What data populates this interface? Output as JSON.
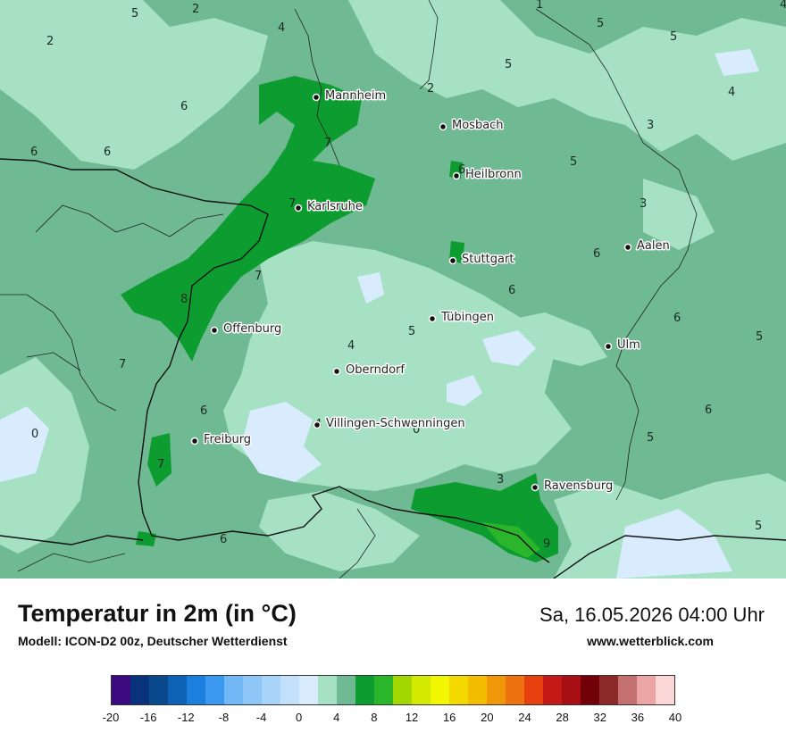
{
  "title": "Temperatur in 2m (in °C)",
  "model": "Modell: ICON-D2 00z, Deutscher Wetterdienst",
  "datetime": "Sa, 16.05.2026 04:00 Uhr",
  "website": "www.wetterblick.com",
  "cities": [
    {
      "name": "Mannheim"
    },
    {
      "name": "Mosbach"
    },
    {
      "name": "Heilbronn"
    },
    {
      "name": "Karlsruhe"
    },
    {
      "name": "Aalen"
    },
    {
      "name": "Stuttgart"
    },
    {
      "name": "Tübingen"
    },
    {
      "name": "Offenburg"
    },
    {
      "name": "Ulm"
    },
    {
      "name": "Oberndorf"
    },
    {
      "name": "Villingen-Schwenningen"
    },
    {
      "name": "Freiburg"
    },
    {
      "name": "Ravensburg"
    }
  ],
  "value_labels": [
    "5",
    "2",
    "2",
    "4",
    "1",
    "5",
    "5",
    "4",
    "5",
    "2",
    "6",
    "4",
    "6",
    "6",
    "7",
    "3",
    "6",
    "5",
    "7",
    "3",
    "6",
    "7",
    "6",
    "8",
    "6",
    "5",
    "4",
    "5",
    "7",
    "6",
    "0",
    "4",
    "0",
    "6",
    "5",
    "7",
    "3",
    "6",
    "9",
    "5"
  ],
  "legend": {
    "colors": [
      "#3b0a7e",
      "#08327a",
      "#0a4a8c",
      "#0e62b5",
      "#1a7fdd",
      "#3a98ee",
      "#72b8f6",
      "#8ec6f8",
      "#a9d4f9",
      "#c4e1fb",
      "#d9ecfd",
      "#a6e1c4",
      "#6fb993",
      "#0c9c30",
      "#2ab52a",
      "#a3d700",
      "#d3e900",
      "#f1f700",
      "#f3d900",
      "#f3bd00",
      "#f0980a",
      "#ee7210",
      "#e5400e",
      "#c41a16",
      "#a80f14",
      "#720008",
      "#8c2a2a",
      "#c47070",
      "#eba5a5",
      "#fbd6d6"
    ],
    "ticks": [
      "-20",
      "-16",
      "-12",
      "-8",
      "-4",
      "0",
      "4",
      "8",
      "12",
      "16",
      "20",
      "24",
      "28",
      "32",
      "36",
      "40"
    ]
  }
}
